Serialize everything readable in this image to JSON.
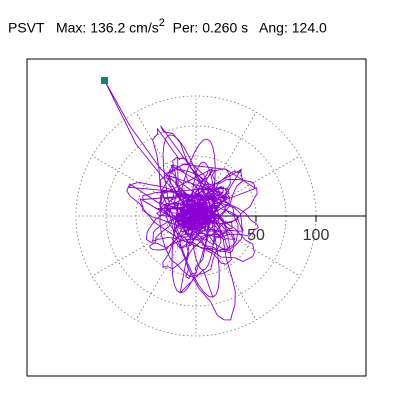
{
  "header": {
    "prefix": "PSVT",
    "max_label": "Max:",
    "max_value": "136.2",
    "max_unit_base": "cm/s",
    "max_unit_exp": "2",
    "per_label": "Per:",
    "per_value": "0.260 s",
    "ang_label": "Ang:",
    "ang_value": "124.0"
  },
  "chart_data": {
    "type": "scatter",
    "description": "Polar trace (PSVT) of a 2D response path; trace values in cm/s^2 along X (right) and Y (up)",
    "tick_labels": [
      "50",
      "100"
    ],
    "rings": [
      25,
      50,
      75,
      100
    ],
    "range": 100,
    "colors": {
      "trace": "#8a00d4",
      "marker": "#0a8a6a",
      "grid": "#777777",
      "axis": "#000000"
    },
    "max_point": {
      "x": -76.2,
      "y": 112.9
    }
  }
}
